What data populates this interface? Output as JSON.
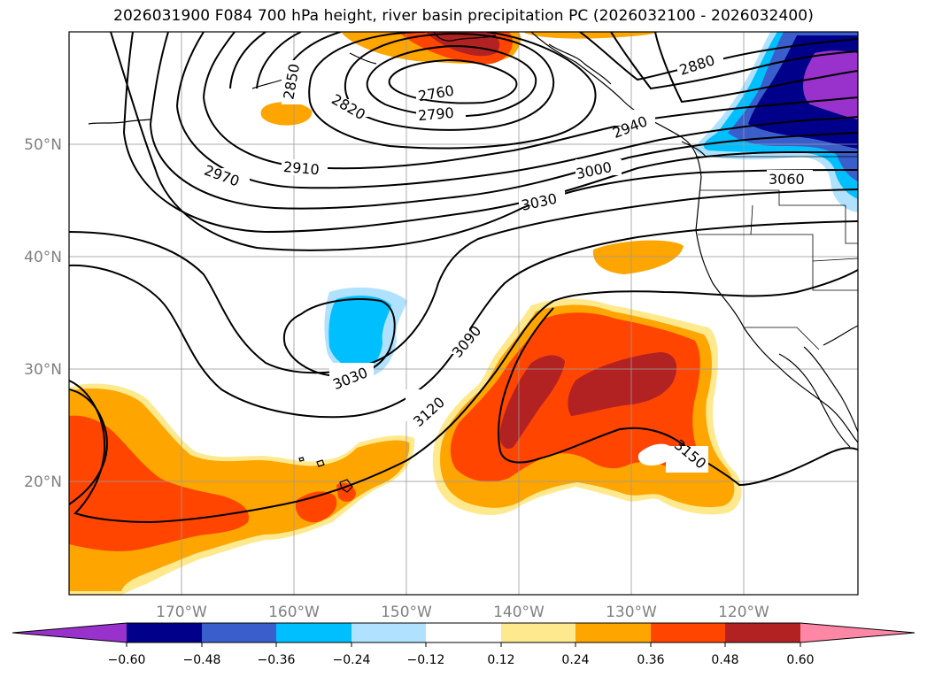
{
  "title": "2026031900 F084 700 hPa height, river basin precipitation PC (2026032100 - 2026032400)",
  "lat_labels": [
    "50°N",
    "40°N",
    "30°N",
    "20°N"
  ],
  "lon_labels": [
    "170°W",
    "160°W",
    "150°W",
    "140°W",
    "130°W",
    "120°W"
  ],
  "contour_labels": [
    "2760",
    "2790",
    "2820",
    "2850",
    "2880",
    "2910",
    "2940",
    "2970",
    "3000",
    "3030",
    "3060",
    "3090",
    "3120",
    "3150",
    "3030"
  ],
  "colorbar": {
    "ticks": [
      "−0.60",
      "−0.48",
      "−0.36",
      "−0.24",
      "−0.12",
      "0.12",
      "0.24",
      "0.36",
      "0.48",
      "0.60"
    ],
    "colors": [
      "#9932CC",
      "#00008B",
      "#3A5FCD",
      "#00BFFF",
      "#B0E2FF",
      "#FFFFFF",
      "#FFE98F",
      "#FFA500",
      "#FF4500",
      "#B22222",
      "#FF87A6"
    ]
  },
  "map_extent": {
    "lon": [
      -180,
      -110
    ],
    "lat": [
      10,
      60
    ]
  }
}
